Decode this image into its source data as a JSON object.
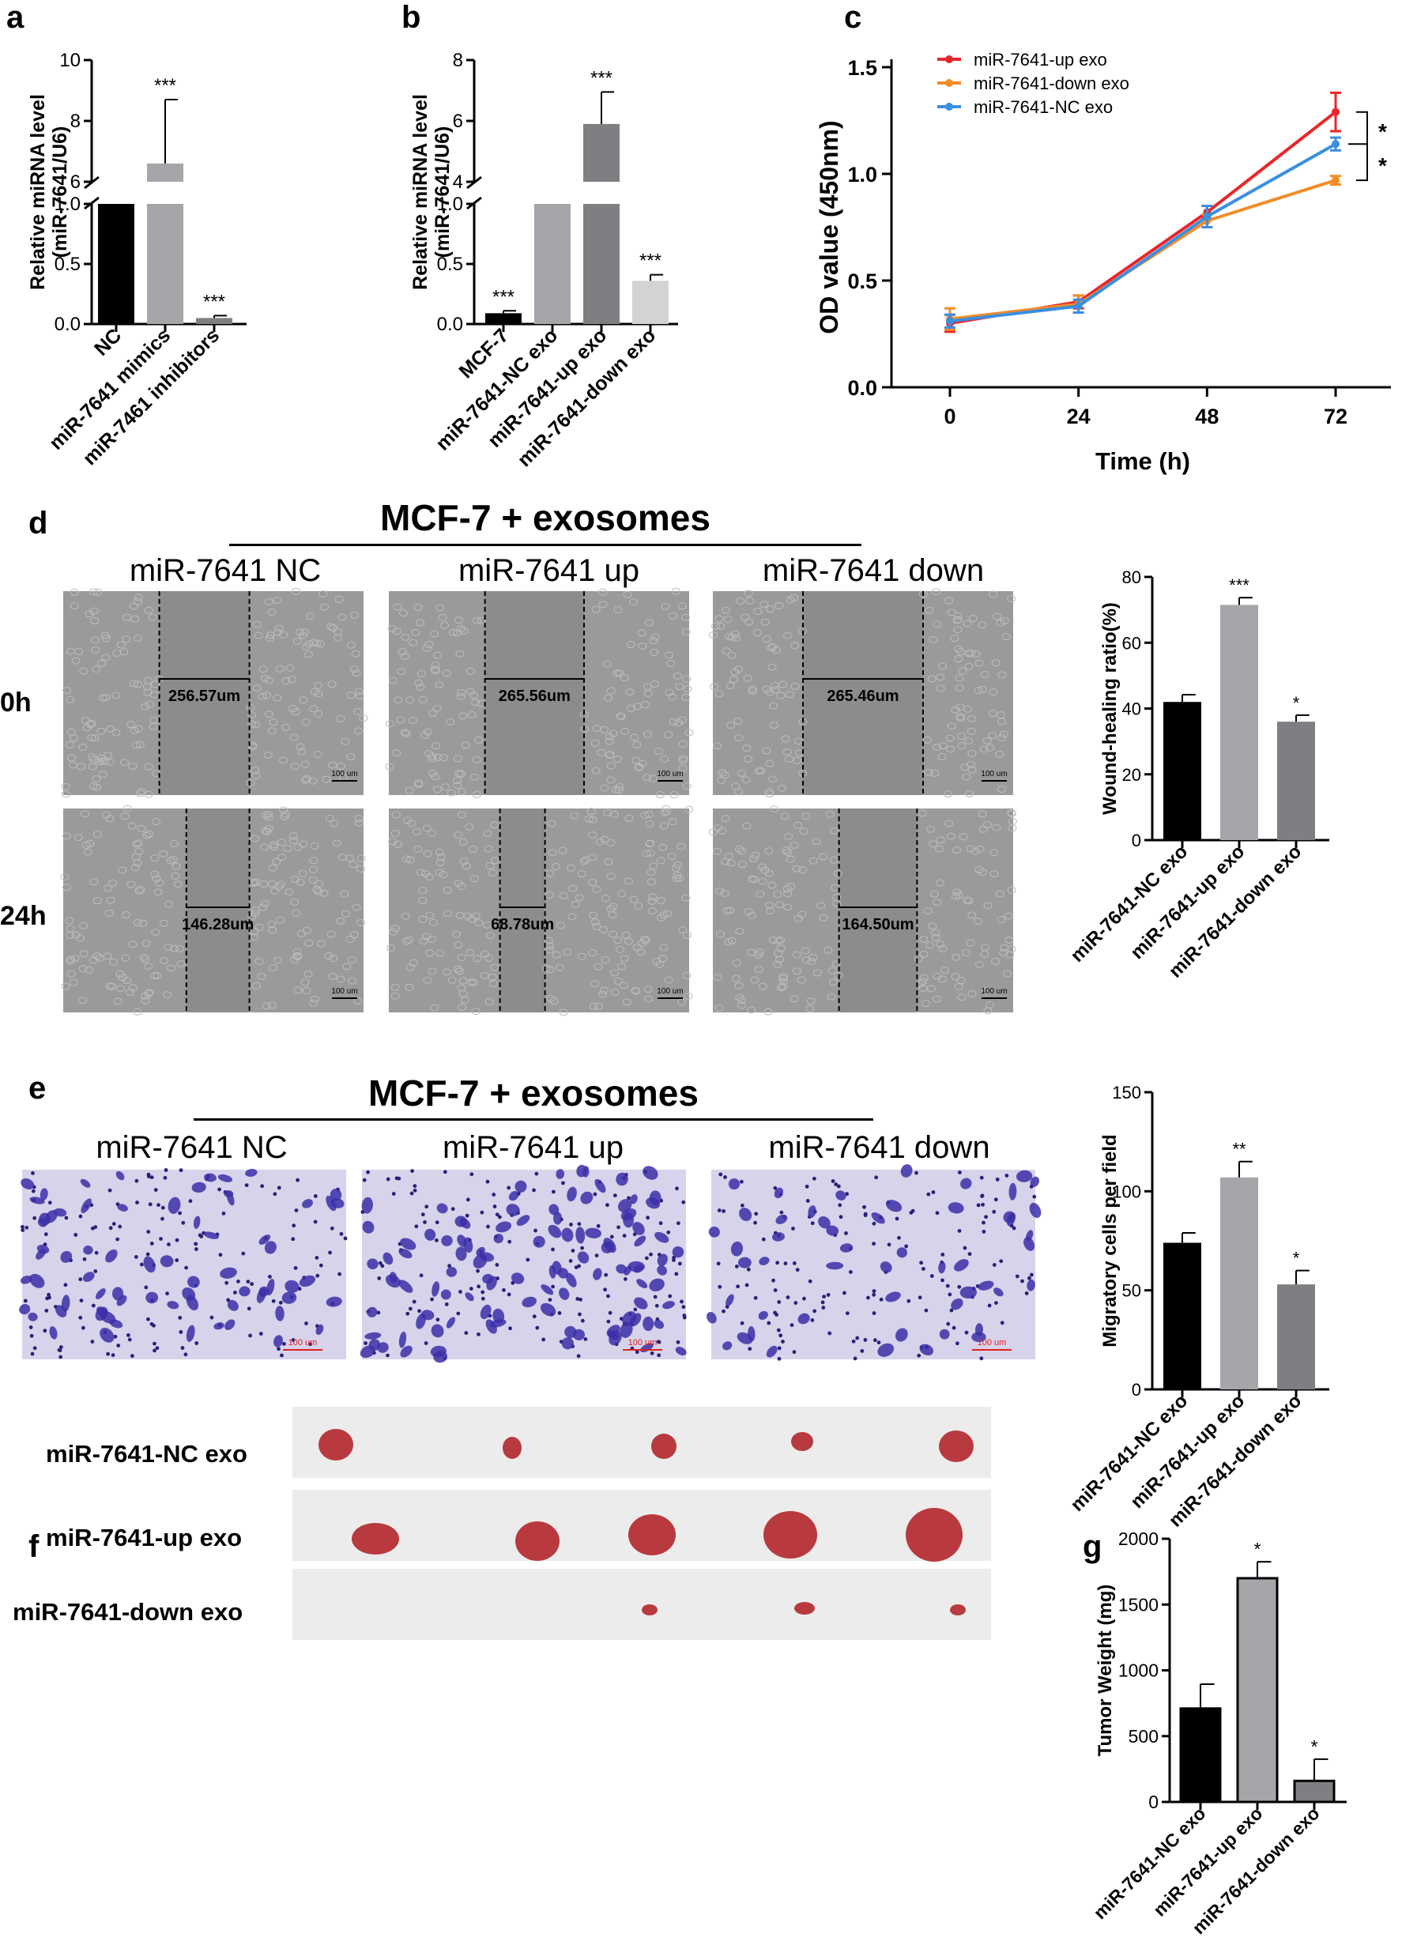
{
  "panel_letters": {
    "a": "a",
    "b": "b",
    "c": "c",
    "d": "d",
    "e": "e",
    "f": "f",
    "g": "g"
  },
  "colors": {
    "black": "#000000",
    "gray_light": "#a6a5aa",
    "gray_mid": "#7f7f83",
    "gray_pale": "#d3d3d3",
    "line_up": "#e8262a",
    "line_down": "#f28c28",
    "line_nc": "#3b8fe0",
    "wound_bg": "#9a9a9a",
    "wound_gap": "#8c8c8c",
    "stain_bg": "#d7d3ea",
    "stain_cell": "#3c2fa8",
    "tumor": "#b83a3e",
    "tray": "#ececec"
  },
  "panel_d": {
    "title": "MCF-7 + exosomes",
    "conditions": [
      "miR-7641 NC",
      "miR-7641 up",
      "miR-7641 down"
    ],
    "rows": [
      "0h",
      "24h"
    ],
    "measurements": [
      [
        "256.57um",
        "265.56um",
        "265.46um"
      ],
      [
        "146.28um",
        "68.78um",
        "164.50um"
      ]
    ],
    "scale": "100 um"
  },
  "panel_e": {
    "title": "MCF-7 + exosomes",
    "conditions": [
      "miR-7641 NC",
      "miR-7641 up",
      "miR-7641 down"
    ],
    "scale": "100 um"
  },
  "panel_f": {
    "rows": [
      "miR-7641-NC exo",
      "miR-7641-up exo",
      "miR-7641-down exo"
    ]
  },
  "chart_data": [
    {
      "id": "a",
      "type": "bar",
      "ylabel": "Relative miRNA level (miR-7641/U6)",
      "ylabel_lines": [
        "Relative miRNA level",
        "(miR-7641/U6)"
      ],
      "categories": [
        "NC",
        "miR-7641 mimics",
        "miR-7461 inhibitors"
      ],
      "values": [
        1.0,
        6.6,
        0.05
      ],
      "errors": [
        0,
        2.1,
        0.02
      ],
      "significance": [
        "",
        "***",
        "***"
      ],
      "axis_break": {
        "lower": [
          0,
          1.0
        ],
        "upper": [
          6,
          10
        ]
      },
      "yticks_lower": [
        "0.0",
        "0.5",
        "1.0"
      ],
      "yticks_upper": [
        "6",
        "8",
        "10"
      ]
    },
    {
      "id": "b",
      "type": "bar",
      "ylabel": "Relative miRNA level (miR-7641/U6)",
      "ylabel_lines": [
        "Relative miRNA level",
        "(miR-7641/U6)"
      ],
      "categories": [
        "MCF-7",
        "miR-7641-NC exo",
        "miR-7641-up exo",
        "miR-7641-down exo"
      ],
      "values": [
        0.09,
        1.0,
        5.9,
        0.36
      ],
      "errors": [
        0.02,
        0,
        1.05,
        0.05
      ],
      "significance": [
        "***",
        "",
        "***",
        "***"
      ],
      "axis_break": {
        "lower": [
          0,
          1.0
        ],
        "upper": [
          4,
          8
        ]
      },
      "yticks_lower": [
        "0.0",
        "0.5",
        "1.0"
      ],
      "yticks_upper": [
        "4",
        "6",
        "8"
      ]
    },
    {
      "id": "c",
      "type": "line",
      "xlabel": "Time (h)",
      "ylabel": "OD value (450nm)",
      "x": [
        0,
        24,
        48,
        72
      ],
      "xticks": [
        "0",
        "24",
        "48",
        "72"
      ],
      "yticks": [
        "0.0",
        "0.5",
        "1.0",
        "1.5"
      ],
      "ylim": [
        0,
        1.5
      ],
      "legend_position": "top-left",
      "series": [
        {
          "name": "miR-7641-up exo",
          "values": [
            0.3,
            0.4,
            0.82,
            1.29
          ],
          "errors": [
            0.04,
            0.03,
            0.03,
            0.09
          ]
        },
        {
          "name": "miR-7641-down exo",
          "values": [
            0.32,
            0.39,
            0.78,
            0.97
          ],
          "errors": [
            0.05,
            0.04,
            0.03,
            0.02
          ]
        },
        {
          "name": "miR-7641-NC exo",
          "values": [
            0.31,
            0.38,
            0.8,
            1.14
          ],
          "errors": [
            0.03,
            0.03,
            0.05,
            0.03
          ]
        }
      ],
      "significance": [
        "*",
        "*"
      ]
    },
    {
      "id": "d",
      "type": "bar",
      "ylabel": "Wound-healing ratio(%)",
      "categories": [
        "miR-7641-NC exo",
        "miR-7641-up exo",
        "miR-7641-down exo"
      ],
      "values": [
        42,
        71.5,
        36
      ],
      "errors": [
        2.2,
        2.2,
        2.0
      ],
      "significance": [
        "",
        "***",
        "*"
      ],
      "ylim": [
        0,
        80
      ],
      "yticks": [
        "0",
        "20",
        "40",
        "60",
        "80"
      ]
    },
    {
      "id": "e",
      "type": "bar",
      "ylabel": "Migratory cells per field",
      "categories": [
        "miR-7641-NC exo",
        "miR-7641-up exo",
        "miR-7641-down exo"
      ],
      "values": [
        74,
        107,
        53
      ],
      "errors": [
        5,
        8,
        7
      ],
      "significance": [
        "",
        "**",
        "*"
      ],
      "ylim": [
        0,
        150
      ],
      "yticks": [
        "0",
        "50",
        "100",
        "150"
      ]
    },
    {
      "id": "g",
      "type": "bar",
      "ylabel": "Tumor Weight (mg)",
      "categories": [
        "miR-7641-NC exo",
        "miR-7641-up exo",
        "miR-7641-down exo"
      ],
      "values": [
        710,
        1700,
        160
      ],
      "errors": [
        185,
        125,
        165
      ],
      "significance": [
        "",
        "*",
        "*"
      ],
      "ylim": [
        0,
        2000
      ],
      "yticks": [
        "0",
        "500",
        "1000",
        "1500",
        "2000"
      ]
    }
  ]
}
